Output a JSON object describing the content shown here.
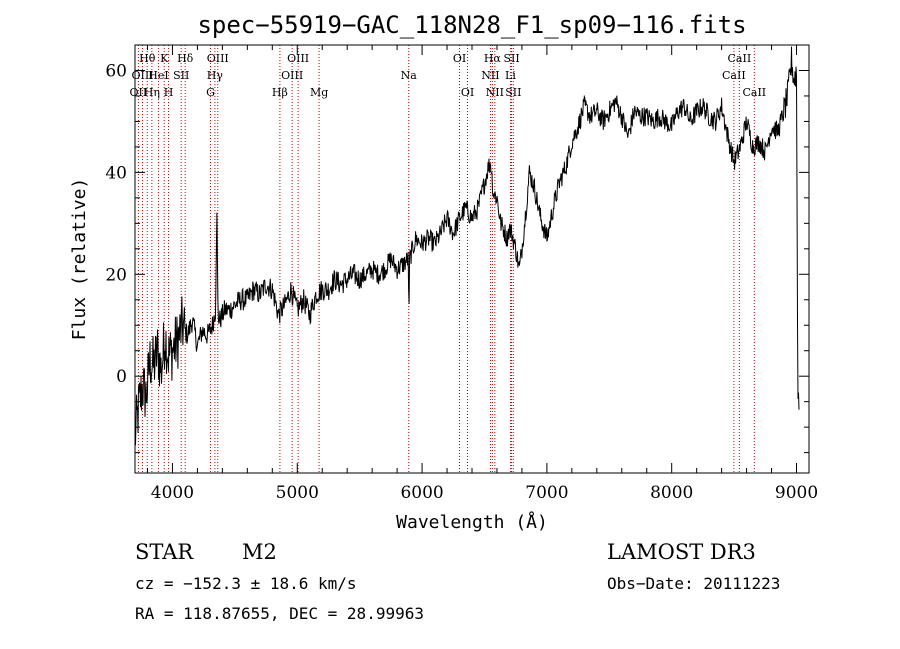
{
  "chart_data": {
    "type": "line",
    "title": "spec−55919−GAC_118N28_F1_sp09−116.fits",
    "xlabel": "Wavelength (Å)",
    "ylabel": "Flux (relative)",
    "xlim": [
      3700,
      9100
    ],
    "ylim": [
      -19,
      65
    ],
    "x_ticks": [
      4000,
      5000,
      6000,
      7000,
      8000,
      9000
    ],
    "y_ticks": [
      0,
      20,
      40,
      60
    ],
    "x_tick_labels": [
      "4000",
      "5000",
      "6000",
      "7000",
      "8000",
      "9000"
    ],
    "y_tick_labels": [
      "0",
      "20",
      "40",
      "60"
    ],
    "series": [
      {
        "name": "flux",
        "x": [
          3700,
          3730,
          3760,
          3790,
          3820,
          3850,
          3880,
          3910,
          3940,
          3970,
          4000,
          4040,
          4080,
          4120,
          4160,
          4200,
          4240,
          4280,
          4320,
          4345,
          4355,
          4365,
          4380,
          4420,
          4460,
          4500,
          4550,
          4600,
          4650,
          4700,
          4750,
          4800,
          4850,
          4900,
          4950,
          5000,
          5050,
          5100,
          5150,
          5200,
          5250,
          5300,
          5350,
          5400,
          5450,
          5500,
          5550,
          5600,
          5650,
          5700,
          5750,
          5800,
          5850,
          5890,
          5895,
          5900,
          5950,
          6000,
          6050,
          6100,
          6150,
          6200,
          6250,
          6300,
          6350,
          6400,
          6450,
          6500,
          6530,
          6550,
          6570,
          6600,
          6630,
          6650,
          6680,
          6700,
          6720,
          6750,
          6780,
          6800,
          6830,
          6860,
          6900,
          6950,
          7000,
          7050,
          7100,
          7150,
          7200,
          7250,
          7300,
          7350,
          7400,
          7450,
          7500,
          7550,
          7600,
          7650,
          7700,
          7750,
          7800,
          7850,
          7900,
          7950,
          8000,
          8050,
          8100,
          8150,
          8200,
          8250,
          8300,
          8350,
          8400,
          8450,
          8500,
          8550,
          8600,
          8650,
          8700,
          8750,
          8800,
          8850,
          8900,
          8930,
          8960,
          8980,
          9000,
          9010,
          9020
        ],
        "values": [
          -12,
          -6,
          -2,
          -4,
          3,
          2,
          5,
          1,
          8,
          4,
          5,
          7,
          10,
          8,
          11,
          6,
          9,
          8,
          10,
          13,
          33,
          12,
          11,
          13,
          13,
          14,
          15,
          15,
          17,
          16,
          18,
          17,
          12,
          14,
          17,
          13,
          15,
          12,
          16,
          17,
          17,
          19,
          18,
          19,
          20,
          19,
          20,
          21,
          20,
          21,
          23,
          21,
          22,
          23,
          10,
          23,
          27,
          26,
          27,
          26,
          28,
          31,
          28,
          31,
          33,
          31,
          33,
          38,
          41,
          42,
          36,
          35,
          30,
          29,
          27,
          29,
          28,
          25,
          21,
          25,
          32,
          40,
          37,
          31,
          27,
          33,
          38,
          41,
          46,
          49,
          53,
          51,
          52,
          50,
          52,
          54,
          51,
          47,
          52,
          51,
          51,
          50,
          51,
          50,
          49,
          52,
          53,
          50,
          52,
          53,
          51,
          50,
          53,
          47,
          42,
          45,
          50,
          45,
          46,
          44,
          49,
          48,
          52,
          55,
          62,
          58,
          60,
          -1,
          -6
        ]
      }
    ],
    "spectral_lines": [
      {
        "label": "OII",
        "wavelength": 3727,
        "row": 2
      },
      {
        "label": "Hθ",
        "wavelength": 3798,
        "row": 0
      },
      {
        "label": "OIII",
        "wavelength": 3760,
        "row": 1
      },
      {
        "label": "Hη",
        "wavelength": 3835,
        "row": 2
      },
      {
        "label": "HeI",
        "wavelength": 3888,
        "row": 1
      },
      {
        "label": "K",
        "wavelength": 3934,
        "row": 0
      },
      {
        "label": "H",
        "wavelength": 3969,
        "row": 2
      },
      {
        "label": "SII",
        "wavelength": 4070,
        "row": 1
      },
      {
        "label": "Hδ",
        "wavelength": 4102,
        "row": 0
      },
      {
        "label": "G",
        "wavelength": 4305,
        "row": 2
      },
      {
        "label": "OIII",
        "wavelength": 4363,
        "row": 0
      },
      {
        "label": "Hγ",
        "wavelength": 4340,
        "row": 1
      },
      {
        "label": "Hβ",
        "wavelength": 4861,
        "row": 2
      },
      {
        "label": "OIII",
        "wavelength": 5007,
        "row": 0
      },
      {
        "label": "OIII",
        "wavelength": 4959,
        "row": 1
      },
      {
        "label": "Mg",
        "wavelength": 5175,
        "row": 2
      },
      {
        "label": "Na",
        "wavelength": 5893,
        "row": 1
      },
      {
        "label": "OI",
        "wavelength": 6300,
        "row": 0
      },
      {
        "label": "OI",
        "wavelength": 6364,
        "row": 2
      },
      {
        "label": "Hα",
        "wavelength": 6563,
        "row": 0
      },
      {
        "label": "NII",
        "wavelength": 6548,
        "row": 1
      },
      {
        "label": "NII",
        "wavelength": 6583,
        "row": 2
      },
      {
        "label": "SII",
        "wavelength": 6717,
        "row": 0
      },
      {
        "label": "Li",
        "wavelength": 6708,
        "row": 1
      },
      {
        "label": "SII",
        "wavelength": 6731,
        "row": 2
      },
      {
        "label": "CaII",
        "wavelength": 8542,
        "row": 0
      },
      {
        "label": "CaII",
        "wavelength": 8498,
        "row": 1
      },
      {
        "label": "CaII",
        "wavelength": 8662,
        "row": 2
      }
    ]
  },
  "info": {
    "object_class": "STAR",
    "subclass": "M2",
    "survey": "LAMOST DR3",
    "redshift": "cz = −152.3 ± 18.6 km/s",
    "obs_date": "Obs−Date: 20111223",
    "coordinates": "RA = 118.87655, DEC =  28.99963"
  },
  "colors": {
    "line_marker": "#cc0000",
    "spectrum": "#000000"
  }
}
